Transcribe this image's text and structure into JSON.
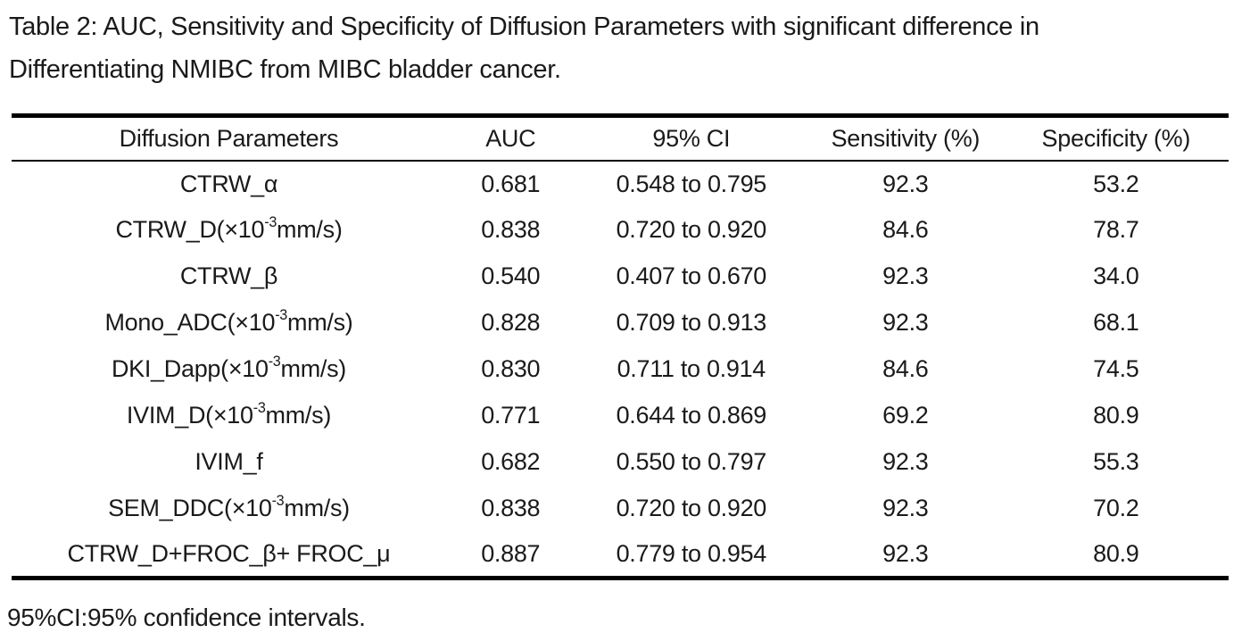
{
  "title": {
    "line1": "Table 2: AUC, Sensitivity and Specificity of Diffusion Parameters with significant difference in",
    "line2": "Differentiating NMIBC from MIBC bladder cancer."
  },
  "table": {
    "columns": [
      "Diffusion Parameters",
      "AUC",
      "95% CI",
      "Sensitivity (%)",
      "Specificity (%)"
    ],
    "rows": [
      {
        "param": [
          "CTRW_α",
          "",
          ""
        ],
        "auc": "0.681",
        "ci": "0.548 to 0.795",
        "sensitivity": "92.3",
        "specificity": "53.2"
      },
      {
        "param": [
          "CTRW_D(×10",
          "-3",
          "mm/s)"
        ],
        "auc": "0.838",
        "ci": "0.720 to 0.920",
        "sensitivity": "84.6",
        "specificity": "78.7"
      },
      {
        "param": [
          "CTRW_β",
          "",
          ""
        ],
        "auc": "0.540",
        "ci": "0.407 to 0.670",
        "sensitivity": "92.3",
        "specificity": "34.0"
      },
      {
        "param": [
          "Mono_ADC(×10",
          "-3",
          "mm/s)"
        ],
        "auc": "0.828",
        "ci": "0.709 to 0.913",
        "sensitivity": "92.3",
        "specificity": "68.1"
      },
      {
        "param": [
          "DKI_Dapp(×10",
          "-3",
          "mm/s)"
        ],
        "auc": "0.830",
        "ci": "0.711 to 0.914",
        "sensitivity": "84.6",
        "specificity": "74.5"
      },
      {
        "param": [
          "IVIM_D(×10",
          "-3",
          "mm/s)"
        ],
        "auc": "0.771",
        "ci": "0.644 to 0.869",
        "sensitivity": "69.2",
        "specificity": "80.9"
      },
      {
        "param": [
          "IVIM_f",
          "",
          ""
        ],
        "auc": "0.682",
        "ci": "0.550 to 0.797",
        "sensitivity": "92.3",
        "specificity": "55.3"
      },
      {
        "param": [
          "SEM_DDC(×10",
          "-3",
          "mm/s)"
        ],
        "auc": "0.838",
        "ci": "0.720 to 0.920",
        "sensitivity": "92.3",
        "specificity": "70.2"
      },
      {
        "param": [
          "CTRW_D+FROC_β+ FROC_μ",
          "",
          ""
        ],
        "auc": "0.887",
        "ci": "0.779 to 0.954",
        "sensitivity": "92.3",
        "specificity": "80.9"
      }
    ]
  },
  "footnote": "95%CI:95% confidence intervals.",
  "colors": {
    "text": "#1a1a1a",
    "rule": "#000000",
    "background": "#ffffff"
  }
}
